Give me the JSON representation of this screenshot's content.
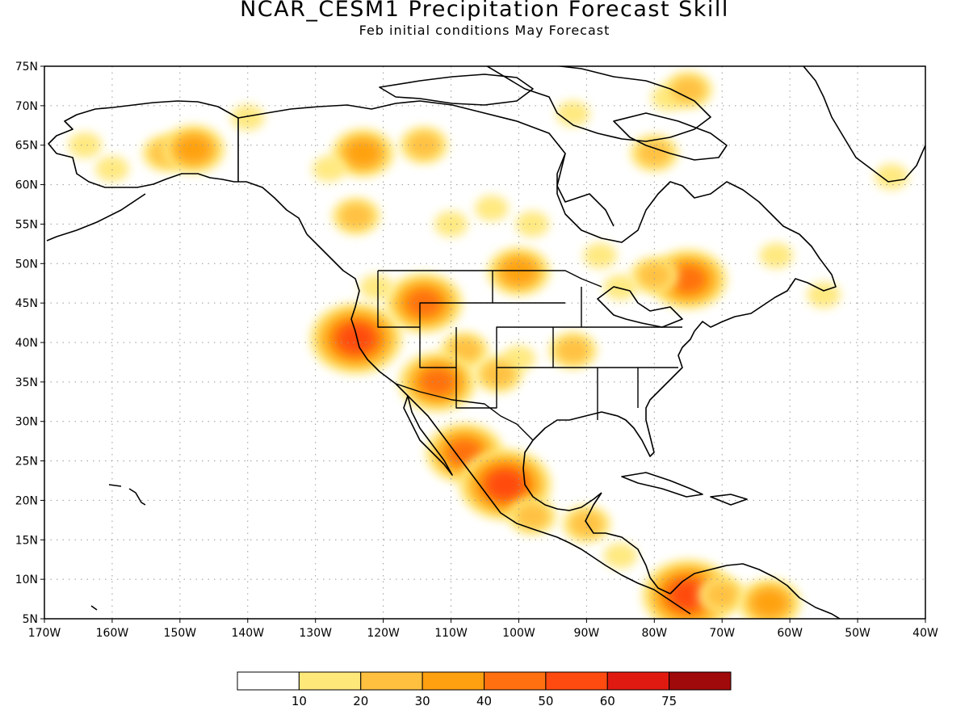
{
  "title": "NCAR_CESM1 Precipitation Forecast Skill",
  "subtitle": "Feb initial conditions  May Forecast",
  "map": {
    "lon_range": [
      -170,
      -40
    ],
    "lat_range": [
      5,
      75
    ],
    "grid": true,
    "lat_labels": [
      "5N",
      "10N",
      "15N",
      "20N",
      "25N",
      "30N",
      "35N",
      "40N",
      "45N",
      "50N",
      "55N",
      "60N",
      "65N",
      "70N",
      "75N"
    ],
    "lon_labels": [
      "170W",
      "160W",
      "150W",
      "140W",
      "130W",
      "120W",
      "110W",
      "100W",
      "90W",
      "80W",
      "70W",
      "60W",
      "50W",
      "40W"
    ]
  },
  "colorbar": {
    "colors": [
      "#ffffff",
      "#ffe87a",
      "#ffc040",
      "#ffa010",
      "#ff7010",
      "#ff4a10",
      "#e01a10",
      "#a00a0a"
    ],
    "labels": [
      "10",
      "20",
      "30",
      "40",
      "50",
      "60",
      "75"
    ]
  },
  "skill_regions": [
    {
      "lon": -152,
      "lat": 64,
      "level": 2
    },
    {
      "lon": -160,
      "lat": 62,
      "level": 1
    },
    {
      "lon": -164,
      "lat": 65,
      "level": 1
    },
    {
      "lon": -148,
      "lat": 64.5,
      "level": 3
    },
    {
      "lon": -140,
      "lat": 68.5,
      "level": 1
    },
    {
      "lon": -123,
      "lat": 64,
      "level": 3
    },
    {
      "lon": -128,
      "lat": 62,
      "level": 1
    },
    {
      "lon": -114,
      "lat": 65,
      "level": 2
    },
    {
      "lon": -124,
      "lat": 56,
      "level": 2
    },
    {
      "lon": -98,
      "lat": 55,
      "level": 1
    },
    {
      "lon": -110,
      "lat": 55,
      "level": 1
    },
    {
      "lon": -104,
      "lat": 57,
      "level": 1
    },
    {
      "lon": -92,
      "lat": 69,
      "level": 1
    },
    {
      "lon": -78,
      "lat": 71,
      "level": 1
    },
    {
      "lon": -80,
      "lat": 64,
      "level": 2
    },
    {
      "lon": -75,
      "lat": 72,
      "level": 2
    },
    {
      "lon": -100,
      "lat": 49,
      "level": 3
    },
    {
      "lon": -114,
      "lat": 45,
      "level": 4
    },
    {
      "lon": -121,
      "lat": 47,
      "level": 1
    },
    {
      "lon": -124,
      "lat": 40.5,
      "level": 5
    },
    {
      "lon": -108,
      "lat": 39,
      "level": 2
    },
    {
      "lon": -100,
      "lat": 38,
      "level": 1
    },
    {
      "lon": -112,
      "lat": 35,
      "level": 4
    },
    {
      "lon": -103,
      "lat": 36,
      "level": 2
    },
    {
      "lon": -92,
      "lat": 39,
      "level": 2
    },
    {
      "lon": -108,
      "lat": 26,
      "level": 4
    },
    {
      "lon": -102,
      "lat": 22,
      "level": 5
    },
    {
      "lon": -98,
      "lat": 18,
      "level": 2
    },
    {
      "lon": -90,
      "lat": 17,
      "level": 2
    },
    {
      "lon": -85,
      "lat": 13,
      "level": 1
    },
    {
      "lon": -75,
      "lat": 8,
      "level": 5
    },
    {
      "lon": -70,
      "lat": 8,
      "level": 2
    },
    {
      "lon": -63,
      "lat": 7,
      "level": 3
    },
    {
      "lon": -75,
      "lat": 48,
      "level": 4
    },
    {
      "lon": -80,
      "lat": 48.5,
      "level": 2
    },
    {
      "lon": -85,
      "lat": 47,
      "level": 1
    },
    {
      "lon": -62,
      "lat": 51,
      "level": 1
    },
    {
      "lon": -55,
      "lat": 46,
      "level": 1
    },
    {
      "lon": -45,
      "lat": 61,
      "level": 1
    },
    {
      "lon": -88,
      "lat": 51,
      "level": 1
    }
  ]
}
